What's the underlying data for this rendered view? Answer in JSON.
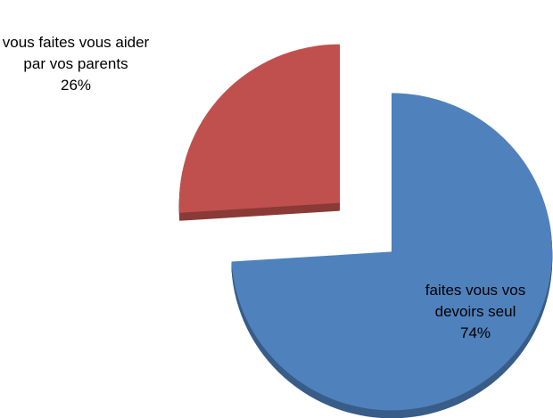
{
  "chart_data": {
    "type": "pie",
    "categories": [
      "faites vous vos devoirs seul",
      "vous faites vous aider par vos parents"
    ],
    "values": [
      74,
      26
    ],
    "value_labels": [
      "74%",
      "26%"
    ],
    "colors": [
      "#4f81bd",
      "#c0504d"
    ]
  }
}
